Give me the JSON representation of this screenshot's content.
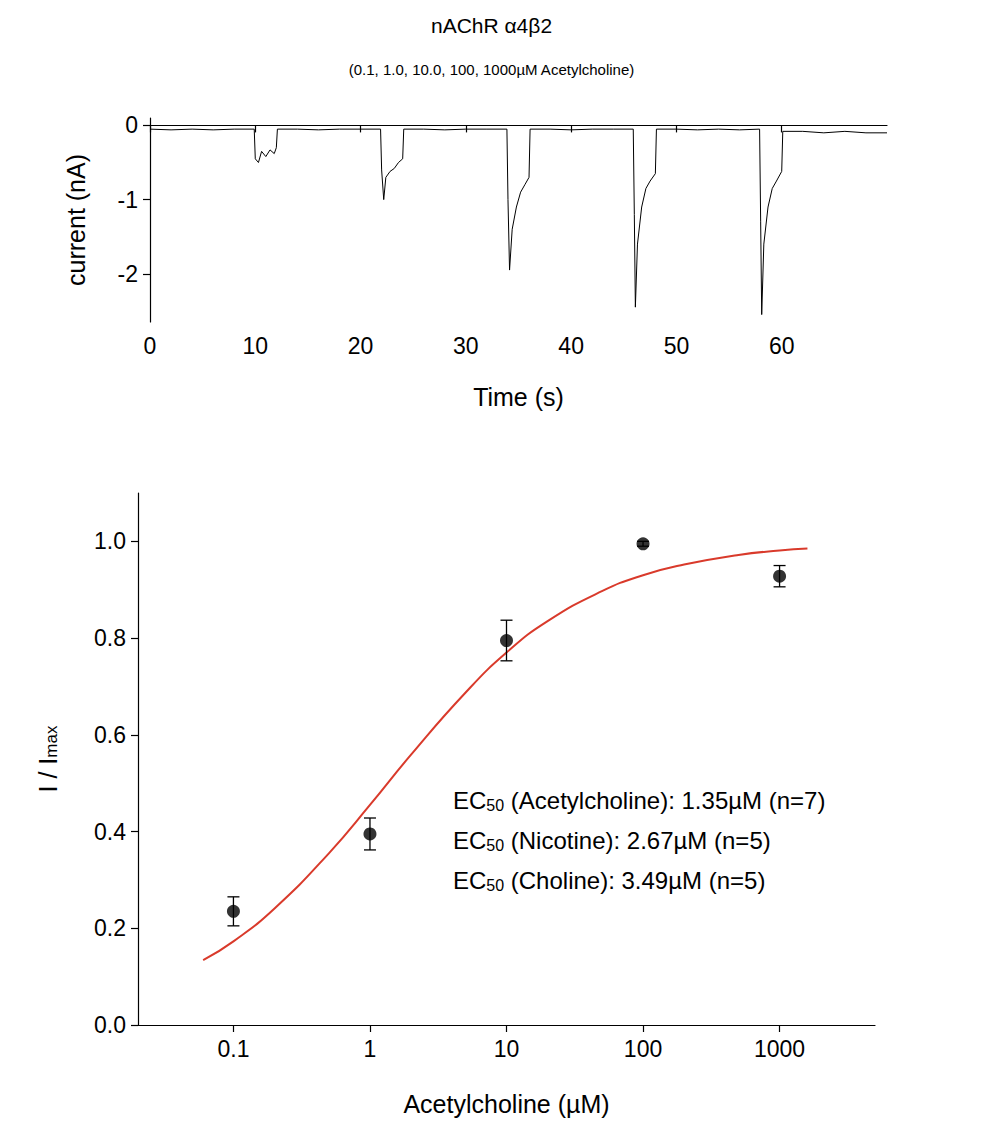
{
  "chart_data": [
    {
      "type": "line",
      "title": "nAChR α4β2",
      "subtitle": "(0.1, 1.0, 10.0, 100, 1000µM Acetylcholine)",
      "xlabel": "Time (s)",
      "ylabel": "current (nA)",
      "color": "#000000",
      "grid": false,
      "xlim": [
        0,
        70
      ],
      "xticks": [
        0,
        10,
        20,
        30,
        40,
        50,
        60
      ],
      "ylim": [
        -2.65,
        0.1
      ],
      "yticks": [
        -2,
        -1,
        0
      ],
      "x": [
        0,
        2,
        4,
        6,
        8,
        9.9,
        10,
        10.3,
        10.6,
        11,
        11.4,
        11.8,
        12,
        12.1,
        14,
        16,
        18,
        20,
        21.9,
        22,
        22.2,
        22.4,
        22.8,
        23.2,
        23.6,
        24,
        24.1,
        26,
        28,
        30,
        32,
        33.9,
        34,
        34.15,
        34.4,
        34.8,
        35.2,
        35.6,
        36,
        36.1,
        38,
        40,
        42,
        44,
        45.9,
        46,
        46.1,
        46.3,
        46.7,
        47.1,
        47.5,
        48,
        48.1,
        50,
        52,
        54,
        56,
        57.9,
        58,
        58.1,
        58.3,
        58.7,
        59.1,
        59.5,
        60,
        60.1,
        62,
        64,
        66,
        68,
        70
      ],
      "values": [
        -0.05,
        -0.06,
        -0.05,
        -0.06,
        -0.05,
        -0.05,
        -0.45,
        -0.5,
        -0.35,
        -0.42,
        -0.33,
        -0.38,
        -0.3,
        -0.05,
        -0.05,
        -0.06,
        -0.05,
        -0.05,
        -0.05,
        -0.6,
        -1.0,
        -0.7,
        -0.62,
        -0.58,
        -0.5,
        -0.45,
        -0.05,
        -0.05,
        -0.06,
        -0.05,
        -0.05,
        -0.05,
        -1.0,
        -1.95,
        -1.4,
        -1.1,
        -0.9,
        -0.8,
        -0.7,
        -0.05,
        -0.05,
        -0.06,
        -0.05,
        -0.05,
        -0.05,
        -1.2,
        -2.45,
        -1.6,
        -1.1,
        -0.85,
        -0.75,
        -0.65,
        -0.05,
        -0.05,
        -0.06,
        -0.05,
        -0.06,
        -0.05,
        -1.3,
        -2.55,
        -1.6,
        -1.1,
        -0.85,
        -0.75,
        -0.62,
        -0.08,
        -0.08,
        -0.1,
        -0.08,
        -0.1,
        -0.1
      ]
    },
    {
      "type": "scatter",
      "xlabel": "Acetylcholine (µM)",
      "ylabel": {
        "text": "I / I",
        "subscript": "max"
      },
      "log": "x",
      "grid": false,
      "xlim": [
        0.02,
        5000
      ],
      "xticks": [
        0.1,
        1,
        10,
        100,
        1000
      ],
      "ylim": [
        0,
        1.1
      ],
      "yticks": [
        {
          "value": 0,
          "label": "0.0"
        },
        {
          "value": 0.2,
          "label": "0.2"
        },
        {
          "value": 0.4,
          "label": "0.4"
        },
        {
          "value": 0.6,
          "label": "0.6"
        },
        {
          "value": 0.8,
          "label": "0.8"
        },
        {
          "value": 1,
          "label": "1.0"
        }
      ],
      "series": [
        {
          "type": "scatter",
          "marker": "circle",
          "color": "#000000",
          "x": [
            0.1,
            1,
            10,
            100,
            1000
          ],
          "values": [
            0.235,
            0.395,
            0.795,
            0.995,
            0.928
          ],
          "errors": [
            0.03,
            0.033,
            0.042,
            0.005,
            0.022
          ]
        },
        {
          "type": "line",
          "line_style": "solid",
          "color": "#d93a2b",
          "x": [
            0.06,
            0.1,
            0.2,
            0.5,
            1,
            2,
            5,
            10,
            20,
            50,
            100,
            200,
            500,
            1000,
            1600
          ],
          "values": [
            0.134,
            0.173,
            0.241,
            0.355,
            0.455,
            0.559,
            0.687,
            0.77,
            0.835,
            0.897,
            0.93,
            0.952,
            0.972,
            0.981,
            0.985
          ]
        }
      ],
      "annotations": [
        {
          "prefix": "EC",
          "subscript": "50",
          "text": " (Acetylcholine): 1.35µM (n=7)"
        },
        {
          "prefix": "EC",
          "subscript": "50",
          "text": " (Nicotine): 2.67µM (n=5)"
        },
        {
          "prefix": "EC",
          "subscript": "50",
          "text": " (Choline): 3.49µM (n=5)"
        }
      ]
    }
  ]
}
